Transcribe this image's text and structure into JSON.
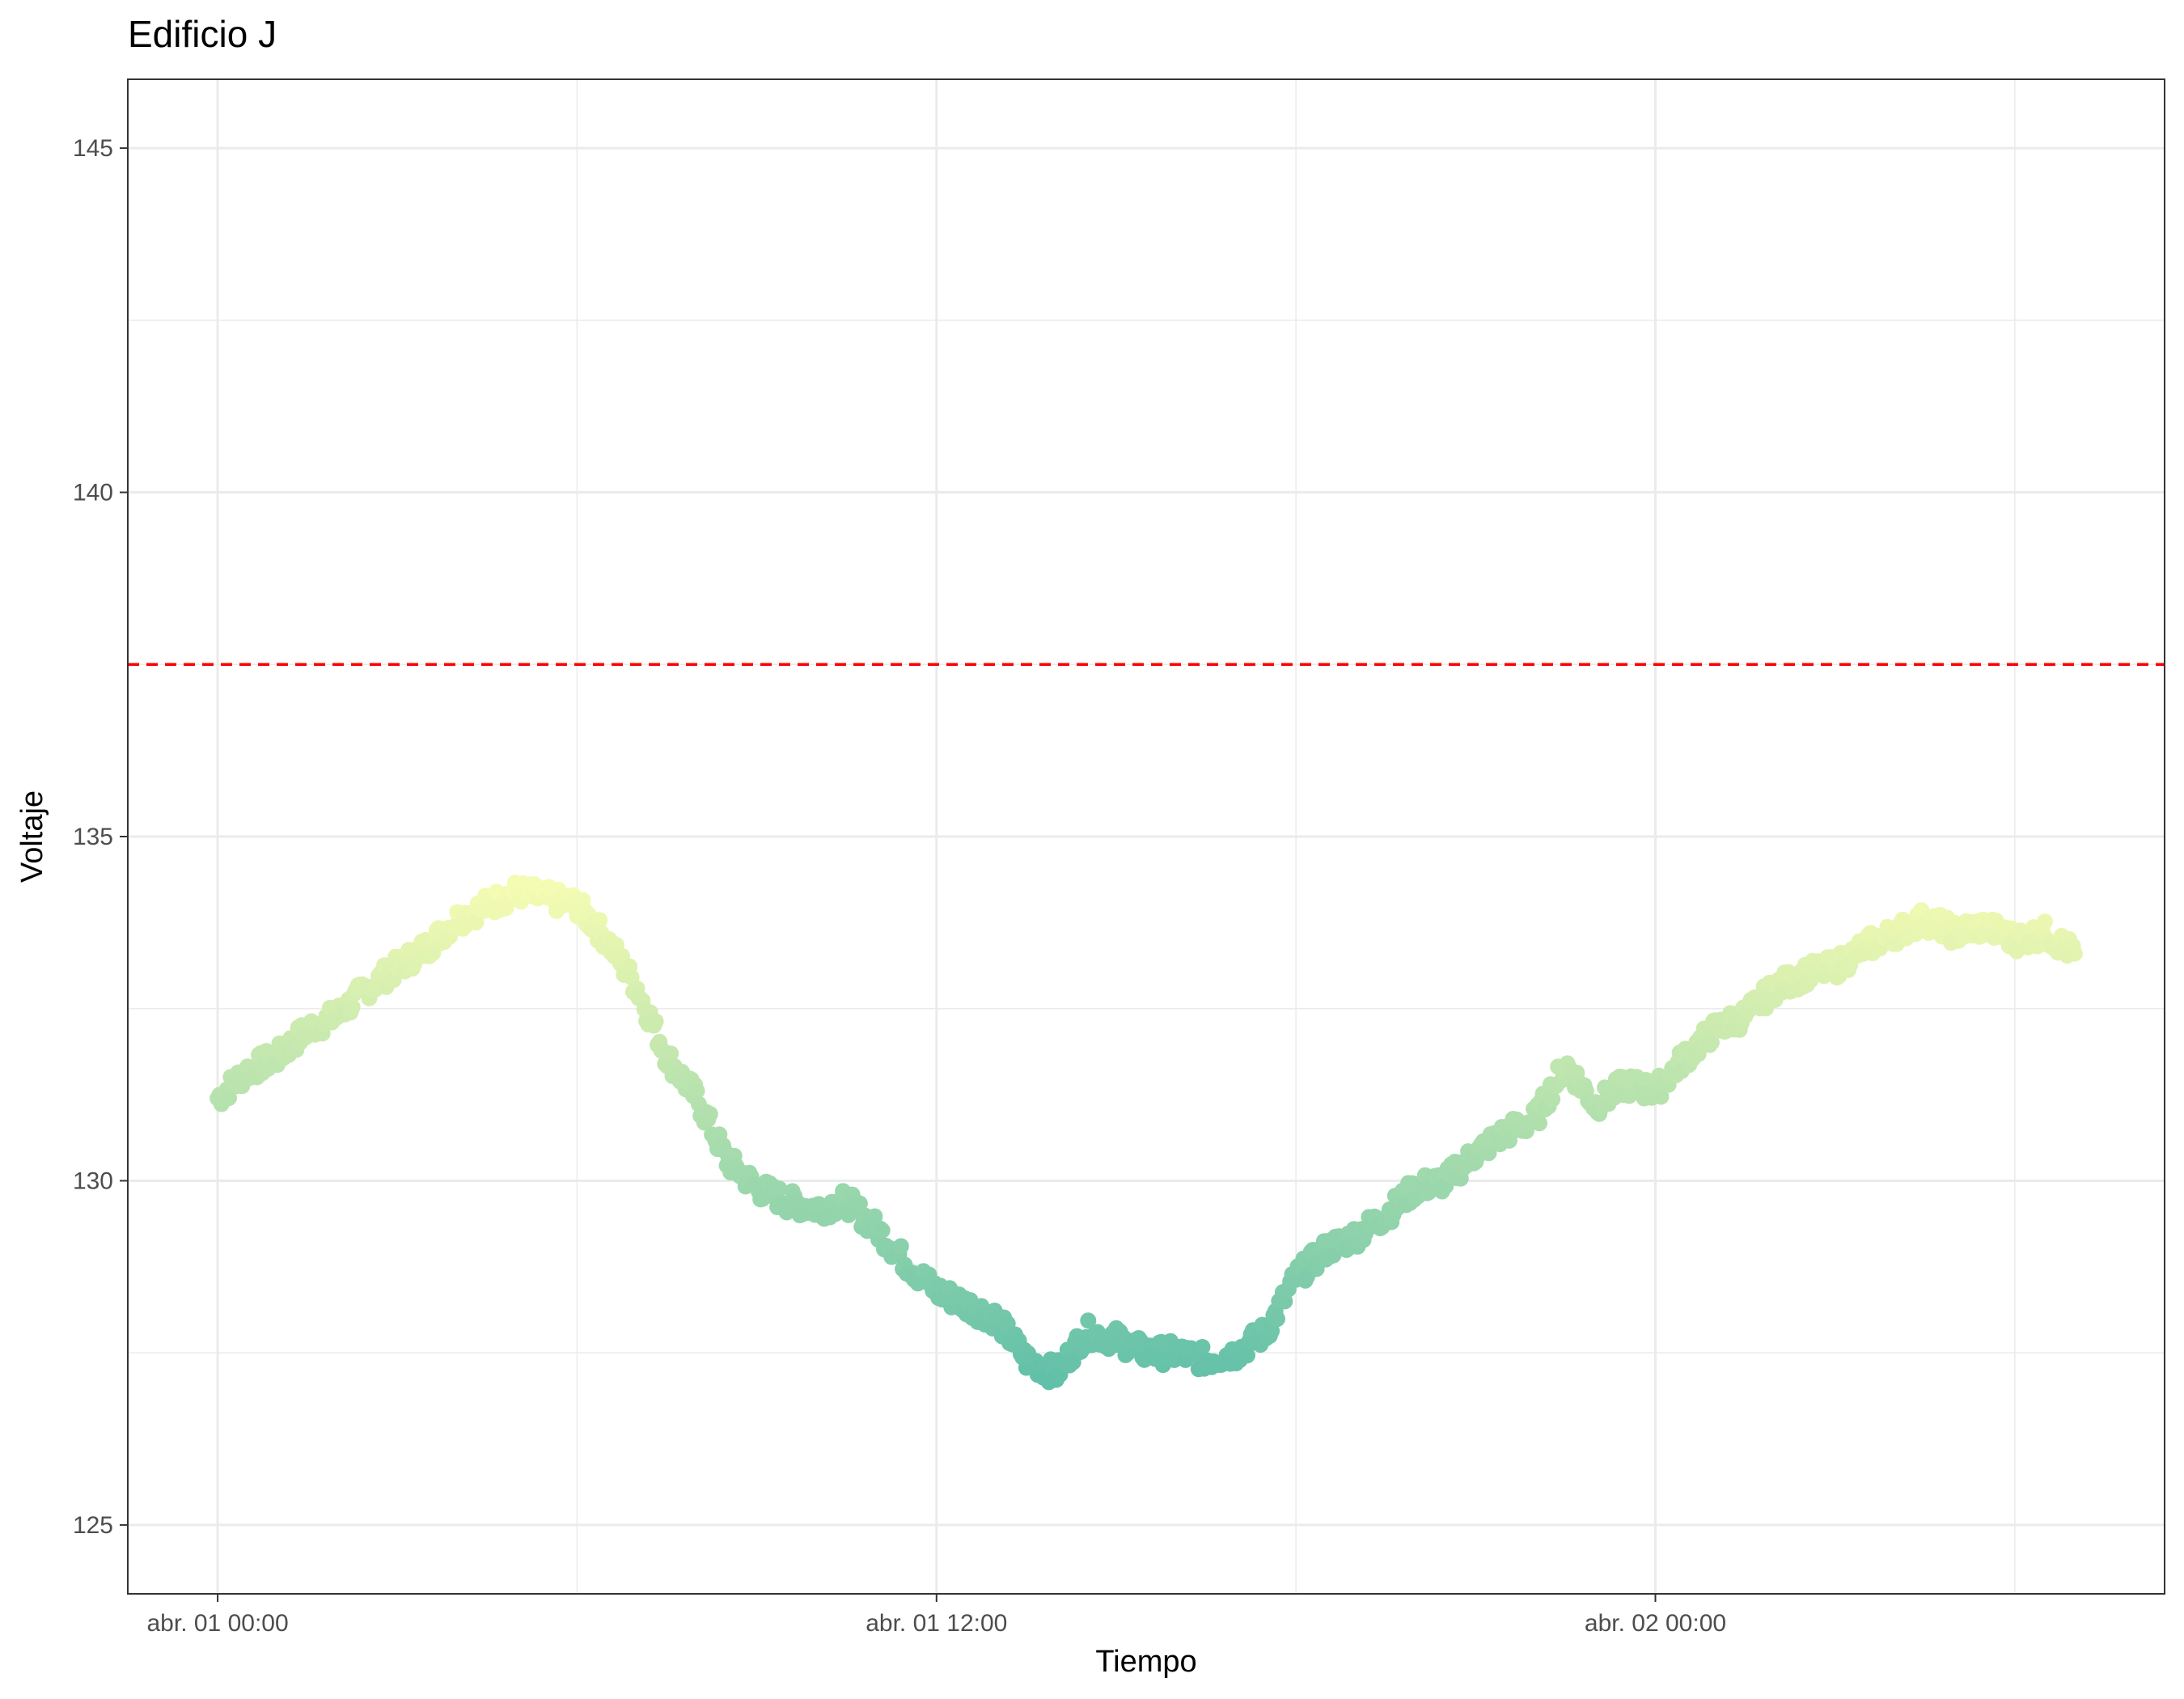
{
  "chart_data": {
    "type": "scatter",
    "title": "Edificio J",
    "xlabel": "Tiempo",
    "ylabel": "Voltaje",
    "ylim": [
      124.0,
      146.0
    ],
    "yticks": [
      125,
      130,
      135,
      140,
      145
    ],
    "x_tick_labels": [
      "abr. 01 00:00",
      "abr. 01 12:00",
      "abr. 02 00:00"
    ],
    "x_tick_hours": [
      0,
      12,
      24
    ],
    "xlim_hours": [
      -1.5,
      32.5
    ],
    "x_minor_hours": [
      6,
      18,
      30
    ],
    "reference_line": {
      "y": 137.5,
      "color": "#ff0000",
      "style": "dashed"
    },
    "color_scale": {
      "low_color": "#5fbfa8",
      "high_color": "#f4fbb2",
      "low_value": 127.0,
      "high_value": 134.2
    },
    "grid": true,
    "series": [
      {
        "x_hours": [
          0.0,
          0.5,
          1.0,
          1.5,
          2.0,
          2.5,
          3.0,
          3.5,
          4.0,
          4.5,
          5.0,
          5.5,
          6.0,
          6.5,
          7.0,
          7.5,
          8.0,
          8.5,
          9.0,
          9.5,
          10.0,
          10.5,
          11.0,
          11.5,
          12.0,
          12.5,
          13.0,
          13.5,
          14.0,
          14.5,
          15.0,
          15.5,
          16.0,
          16.5,
          17.0,
          17.5,
          18.0,
          18.5,
          19.0,
          19.5,
          20.0,
          20.5,
          21.0,
          21.5,
          22.0,
          22.5,
          23.0,
          23.5,
          24.0,
          24.5,
          25.0,
          25.5,
          26.0,
          26.5,
          27.0,
          27.5,
          28.0,
          28.5,
          29.0,
          29.5,
          30.0,
          30.5,
          31.0
        ],
        "values": [
          131.2,
          131.6,
          131.8,
          132.2,
          132.4,
          132.8,
          133.1,
          133.4,
          133.8,
          134.0,
          134.2,
          134.1,
          134.0,
          133.5,
          132.8,
          131.8,
          131.2,
          130.3,
          129.9,
          129.7,
          129.6,
          129.7,
          129.3,
          128.8,
          128.4,
          128.2,
          128.0,
          127.4,
          127.2,
          127.8,
          127.7,
          127.5,
          127.5,
          127.4,
          127.5,
          127.8,
          128.6,
          129.0,
          129.2,
          129.5,
          129.9,
          130.0,
          130.4,
          130.7,
          130.9,
          131.7,
          131.1,
          131.4,
          131.3,
          131.8,
          132.2,
          132.4,
          132.8,
          133.0,
          133.1,
          133.4,
          133.6,
          133.8,
          133.6,
          133.7,
          133.5,
          133.6,
          133.3
        ]
      }
    ]
  }
}
